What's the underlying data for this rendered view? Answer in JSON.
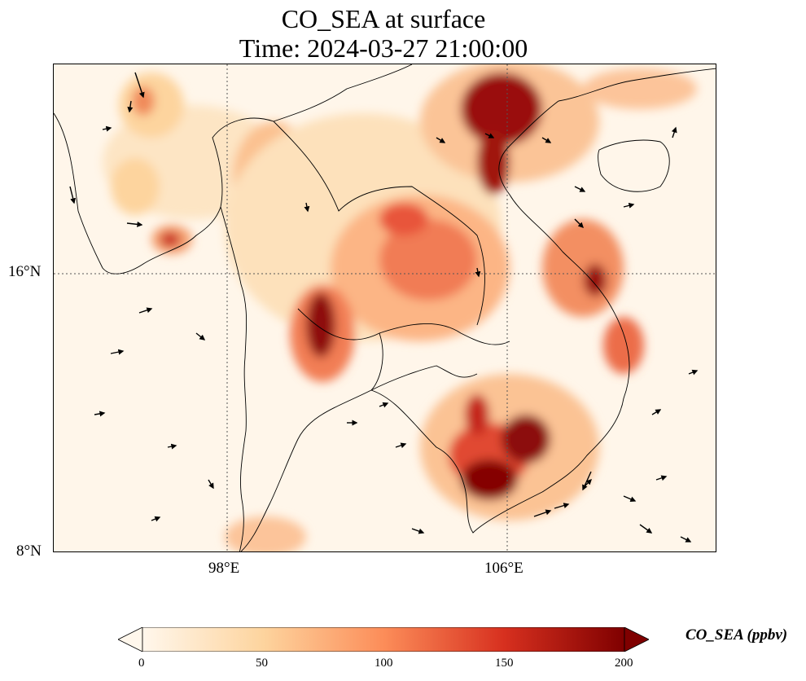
{
  "title_line1": "CO_SEA at surface",
  "title_line2": "Time: 2024-03-27 21:00:00",
  "lat_ticks": [
    "16°N",
    "8°N"
  ],
  "lon_ticks": [
    "98°E",
    "106°E"
  ],
  "colorbar": {
    "label": "CO_SEA (ppbv)",
    "ticks": [
      "0",
      "50",
      "100",
      "150",
      "200"
    ],
    "range": [
      0,
      200
    ],
    "colormap": "OrRd",
    "colors": [
      "#fff7ec",
      "#fdd49e",
      "#fc8d59",
      "#d7301f",
      "#7f0000"
    ]
  }
}
